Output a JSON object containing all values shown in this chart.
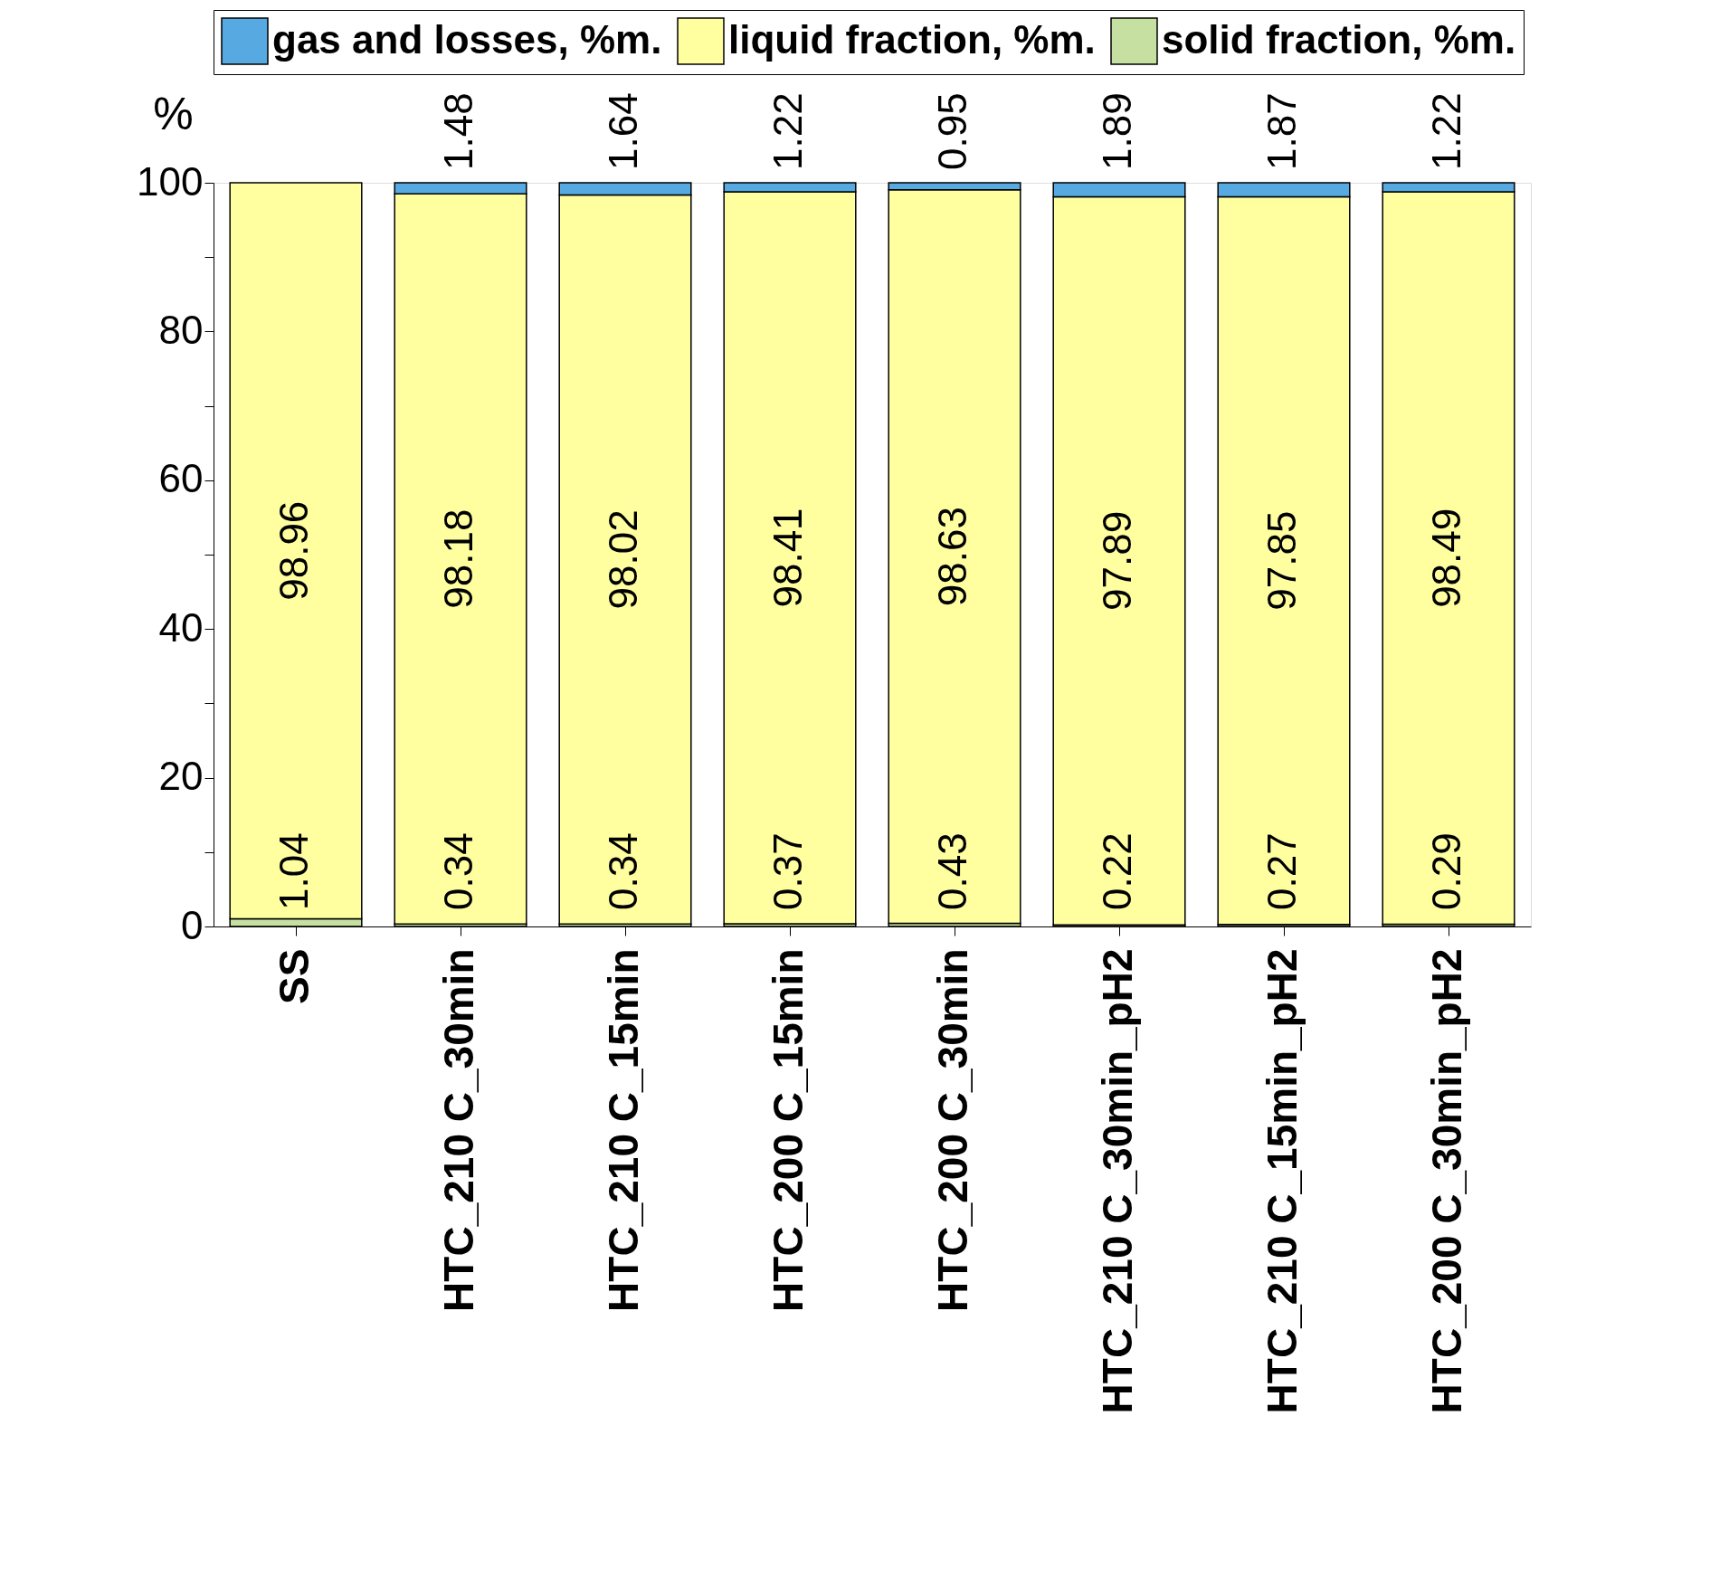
{
  "chart_data": {
    "type": "bar",
    "stacked": true,
    "ylabel": "%",
    "categories": [
      "SS",
      "HTC_210 C_30min",
      "HTC_210 C_15min",
      "HTC_200 C_15min",
      "HTC_200 C_30min",
      "HTC_210 C_30min_pH2",
      "HTC_210 C_15min_pH2",
      "HTC_200 C_30min_pH2"
    ],
    "series": [
      {
        "name": "solid fraction, %m.",
        "color": "#c5e0a0",
        "values": [
          1.04,
          0.34,
          0.34,
          0.37,
          0.43,
          0.22,
          0.27,
          0.29
        ],
        "value_labels": [
          "1.04",
          "0.34",
          "0.34",
          "0.37",
          "0.43",
          "0.22",
          "0.27",
          "0.29"
        ]
      },
      {
        "name": "liquid fraction, %m.",
        "color": "#ffffa0",
        "values": [
          98.96,
          98.18,
          98.02,
          98.41,
          98.63,
          97.89,
          97.85,
          98.49
        ],
        "value_labels": [
          "98.96",
          "98.18",
          "98.02",
          "98.41",
          "98.63",
          "97.89",
          "97.85",
          "98.49"
        ]
      },
      {
        "name": "gas and losses, %m.",
        "color": "#56a9e1",
        "values": [
          null,
          1.48,
          1.64,
          1.22,
          0.95,
          1.89,
          1.87,
          1.22
        ],
        "value_labels": [
          null,
          "1.48",
          "1.64",
          "1.22",
          "0.95",
          "1.89",
          "1.87",
          "1.22"
        ]
      }
    ],
    "ylim": [
      0,
      100
    ],
    "yticks": [
      0,
      {
        "value": 10,
        "label": null
      },
      20,
      {
        "value": 30,
        "label": null
      },
      40,
      {
        "value": 50,
        "label": null
      },
      60,
      {
        "value": 70,
        "label": null
      },
      80,
      {
        "value": 90,
        "label": null
      },
      100
    ],
    "legend": "top",
    "grid": false
  }
}
